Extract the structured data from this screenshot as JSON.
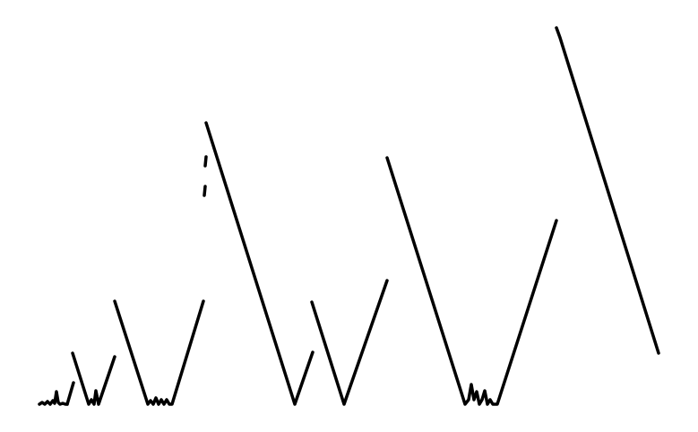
{
  "colors": {
    "background": "#ffffff",
    "ink": "#000000"
  },
  "figure": {
    "kind": "black line trace on white background"
  }
}
